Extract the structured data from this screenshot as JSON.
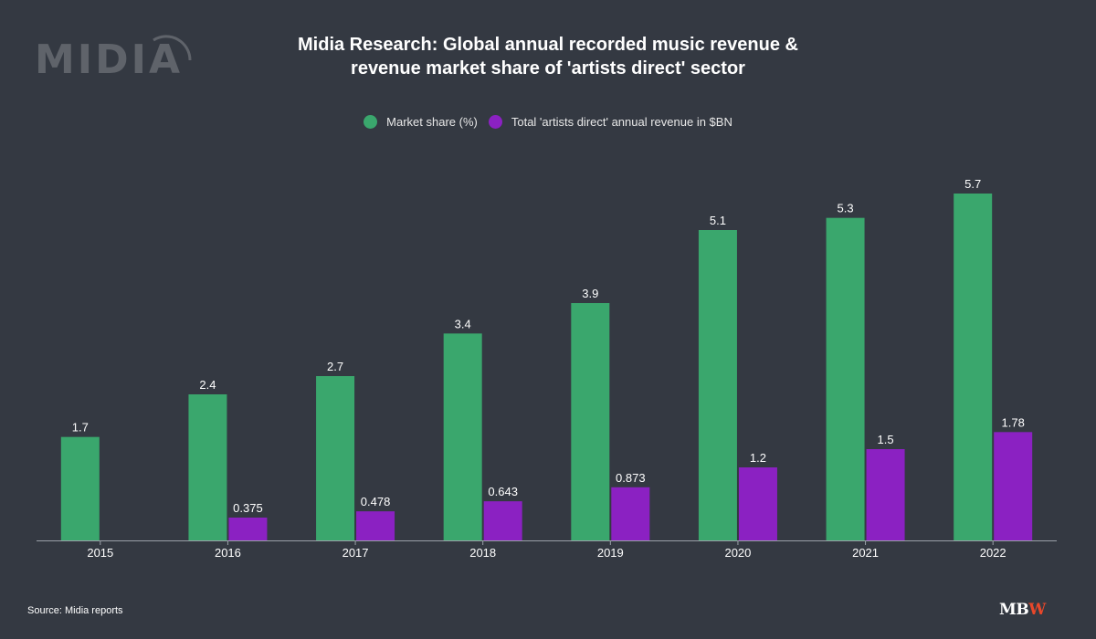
{
  "brand": {
    "logo_text": "MIDIA",
    "footer_logo_mb": "MB",
    "footer_logo_w": "W"
  },
  "source_note": "Source: Midia reports",
  "chart_data": {
    "type": "bar",
    "title": "Midia Research: Global annual recorded music revenue & revenue market share of 'artists direct' sector",
    "title_lines": [
      "Midia Research: Global annual recorded music revenue &",
      "revenue market share of 'artists direct' sector"
    ],
    "categories": [
      "2015",
      "2016",
      "2017",
      "2018",
      "2019",
      "2020",
      "2021",
      "2022"
    ],
    "series": [
      {
        "name": "Market share (%)",
        "color": "#3aa76d",
        "values": [
          1.7,
          2.4,
          2.7,
          3.4,
          3.9,
          5.1,
          5.3,
          5.7
        ],
        "labels": [
          "1.7",
          "2.4",
          "2.7",
          "3.4",
          "3.9",
          "5.1",
          "5.3",
          "5.7"
        ]
      },
      {
        "name": "Total 'artists direct' annual revenue in $BN",
        "color": "#8b21c2",
        "values": [
          null,
          0.375,
          0.478,
          0.643,
          0.873,
          1.2,
          1.5,
          1.78
        ],
        "labels": [
          "",
          "0.375",
          "0.478",
          "0.643",
          "0.873",
          "1.2",
          "1.5",
          "1.78"
        ]
      }
    ],
    "ylim": [
      0,
      6
    ],
    "grid": false,
    "legend_position": "top-center"
  }
}
